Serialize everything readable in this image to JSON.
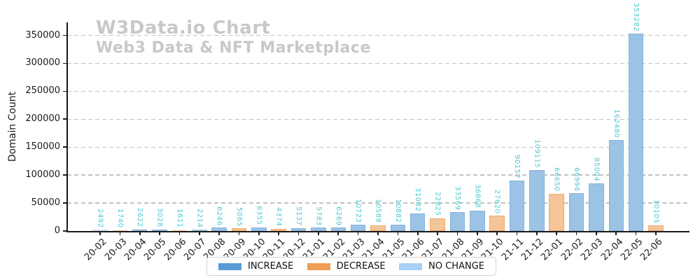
{
  "chart_data": {
    "type": "bar",
    "title": "W3Data.io Chart",
    "subtitle": "Web3 Data & NFT Marketplace",
    "ylabel": "Domain Count",
    "ylim": [
      0,
      380000
    ],
    "yticks": [
      0,
      50000,
      100000,
      150000,
      200000,
      250000,
      300000,
      350000
    ],
    "grid": "horizontal dashed",
    "legend_position": "bottom center",
    "categories": [
      "20-02",
      "20-03",
      "20-04",
      "20-05",
      "20-06",
      "20-07",
      "20-08",
      "20-09",
      "20-10",
      "20-11",
      "20-12",
      "21-01",
      "21-02",
      "21-03",
      "21-04",
      "21-05",
      "21-06",
      "21-07",
      "21-08",
      "21-09",
      "21-10",
      "21-11",
      "21-12",
      "22-01",
      "22-02",
      "22-03",
      "22-04",
      "22-05",
      "22-06"
    ],
    "values": [
      2492,
      1740,
      2622,
      3028,
      1611,
      2214,
      6246,
      5065,
      6355,
      4374,
      5137,
      5783,
      6269,
      10723,
      10588,
      10882,
      31082,
      22825,
      33569,
      36868,
      27620,
      90157,
      109115,
      66650,
      66996,
      85004,
      162480,
      353282,
      10105
    ],
    "statuses": [
      "no_change",
      "decrease",
      "increase",
      "increase",
      "decrease",
      "increase",
      "increase",
      "decrease",
      "increase",
      "decrease",
      "increase",
      "increase",
      "increase",
      "increase",
      "decrease",
      "increase",
      "increase",
      "decrease",
      "increase",
      "increase",
      "decrease",
      "increase",
      "increase",
      "decrease",
      "increase",
      "increase",
      "increase",
      "increase",
      "decrease"
    ],
    "legend": [
      {
        "key": "increase",
        "label": "INCREASE"
      },
      {
        "key": "decrease",
        "label": "DECREASE"
      },
      {
        "key": "no_change",
        "label": "NO CHANGE"
      }
    ],
    "colors": {
      "increase": "#5b9bd5",
      "decrease": "#ee9e55",
      "no_change": "#a6d1f5",
      "bar_fill_increase": "#9cc3e6",
      "bar_fill_decrease": "#f4c598",
      "bar_fill_no_change": "#cae3f9",
      "bar_edge_increase": "#85b2dc",
      "bar_edge_decrease": "#f0a96f",
      "bar_edge_no_change": "#b3d7f6",
      "value_label": "#4fc7d0",
      "title_gray": "#c8c8c8",
      "grid": "#c3c3c3",
      "axis": "#1a1a1a"
    }
  }
}
